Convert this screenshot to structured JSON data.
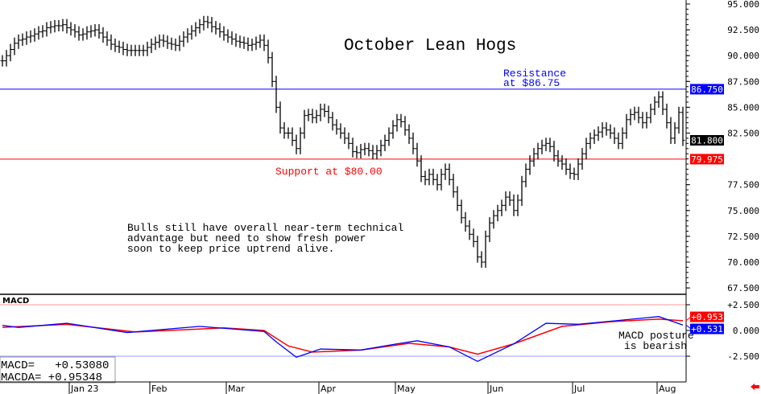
{
  "chart_data": {
    "type": "bar",
    "subtype": "ohlc",
    "title": "October Lean Hogs",
    "price_axis": {
      "range": [
        67.5,
        95.0
      ],
      "ticks": [
        "95.000",
        "92.500",
        "90.000",
        "87.500",
        "85.000",
        "82.500",
        "77.500",
        "75.000",
        "72.500",
        "70.000",
        "67.500"
      ]
    },
    "x_ticks": [
      "Jan 23",
      "Feb",
      "Mar",
      "Apr",
      "May",
      "Jun",
      "Jul",
      "Aug"
    ],
    "x_tick_bar_index": [
      17,
      37,
      56,
      79,
      98,
      121,
      142,
      163
    ],
    "close": [
      89.5,
      90.0,
      90.6,
      91.2,
      91.5,
      91.6,
      91.8,
      91.9,
      92.1,
      92.3,
      92.4,
      92.7,
      92.8,
      92.9,
      92.9,
      93.0,
      92.7,
      92.5,
      92.3,
      92.0,
      92.1,
      92.3,
      92.4,
      92.5,
      92.2,
      91.8,
      91.5,
      91.1,
      90.9,
      90.8,
      90.6,
      90.5,
      90.5,
      90.5,
      90.5,
      90.5,
      90.8,
      91.1,
      91.3,
      91.5,
      91.4,
      91.2,
      91.1,
      91.0,
      91.4,
      91.8,
      92.1,
      92.4,
      92.7,
      93.0,
      93.3,
      93.2,
      92.8,
      92.6,
      92.3,
      92.0,
      91.8,
      91.6,
      91.4,
      91.3,
      91.2,
      91.0,
      91.1,
      91.3,
      91.5,
      91.0,
      89.8,
      87.5,
      85.0,
      83.0,
      82.5,
      82.5,
      81.8,
      81.0,
      82.5,
      84.2,
      84.3,
      84.0,
      84.2,
      84.8,
      84.6,
      84.0,
      83.3,
      82.9,
      82.5,
      82.0,
      81.5,
      80.7,
      80.6,
      80.9,
      81.0,
      80.8,
      80.5,
      80.8,
      81.3,
      81.8,
      82.5,
      83.2,
      83.8,
      83.6,
      82.8,
      82.0,
      81.0,
      79.8,
      78.3,
      78.0,
      78.5,
      78.0,
      77.5,
      78.5,
      79.0,
      78.0,
      76.8,
      75.5,
      74.3,
      73.5,
      72.7,
      72.0,
      70.5,
      70.0,
      72.5,
      73.8,
      74.5,
      75.0,
      75.5,
      76.3,
      76.0,
      75.0,
      76.0,
      77.8,
      79.0,
      79.8,
      80.5,
      81.0,
      81.3,
      81.5,
      81.2,
      80.3,
      79.8,
      79.5,
      79.0,
      78.6,
      78.5,
      79.5,
      80.5,
      81.5,
      82.0,
      82.3,
      82.6,
      83.0,
      82.8,
      82.5,
      82.0,
      81.5,
      82.5,
      83.8,
      84.3,
      84.5,
      84.0,
      83.5,
      84.0,
      84.8,
      85.5,
      86.0,
      84.8,
      83.5,
      82.0,
      83.0,
      84.5,
      81.8
    ],
    "resistance": {
      "value": 86.75,
      "label": "86.750",
      "color": "#0000ff",
      "annotation_line1": "Resistance",
      "annotation_line2": "at $86.75"
    },
    "support": {
      "value": 79.975,
      "label": "79.975",
      "color": "#ff0000",
      "annotation": "Support at $80.00"
    },
    "last_price_label": "81.800",
    "last_price": 81.8,
    "commentary": [
      "Bulls still have overall near-term technical",
      "advantage but need to show fresh power",
      "soon to keep price uptrend alive."
    ],
    "macd": {
      "label": "MACD",
      "range": [
        -4.2,
        4.2
      ],
      "ticks": [
        "+2.500",
        "0.000",
        "-2.500"
      ],
      "upper_level": 2.5,
      "lower_level": -2.5,
      "macd_series": [
        [
          0,
          0.5
        ],
        [
          4,
          0.3
        ],
        [
          16,
          0.7
        ],
        [
          31,
          -0.2
        ],
        [
          49,
          0.4
        ],
        [
          65,
          -0.1
        ],
        [
          68,
          -1.1
        ],
        [
          73,
          -2.6
        ],
        [
          79,
          -1.8
        ],
        [
          89,
          -1.9
        ],
        [
          98,
          -1.3
        ],
        [
          103,
          -1.0
        ],
        [
          111,
          -1.6
        ],
        [
          118,
          -3.0
        ],
        [
          127,
          -1.3
        ],
        [
          135,
          0.7
        ],
        [
          143,
          0.6
        ],
        [
          151,
          0.9
        ],
        [
          159,
          1.2
        ],
        [
          163,
          1.35
        ],
        [
          169,
          0.53
        ]
      ],
      "macda_series": [
        [
          0,
          0.3
        ],
        [
          16,
          0.6
        ],
        [
          33,
          -0.15
        ],
        [
          55,
          0.25
        ],
        [
          65,
          0.0
        ],
        [
          71,
          -1.5
        ],
        [
          77,
          -2.1
        ],
        [
          89,
          -1.9
        ],
        [
          101,
          -1.25
        ],
        [
          111,
          -1.6
        ],
        [
          118,
          -2.3
        ],
        [
          127,
          -1.3
        ],
        [
          139,
          0.4
        ],
        [
          151,
          0.85
        ],
        [
          163,
          1.1
        ],
        [
          169,
          0.95
        ]
      ],
      "macd_color": "#0000ff",
      "macda_color": "#ff0000",
      "macd_value_label": "+0.531",
      "macda_value_label": "+0.953",
      "readout_macd": "MACD=   +0.53080",
      "readout_macda": "MACDA= +0.95348",
      "annotation_line1": "MACD posture",
      "annotation_line2": "is bearish"
    }
  }
}
